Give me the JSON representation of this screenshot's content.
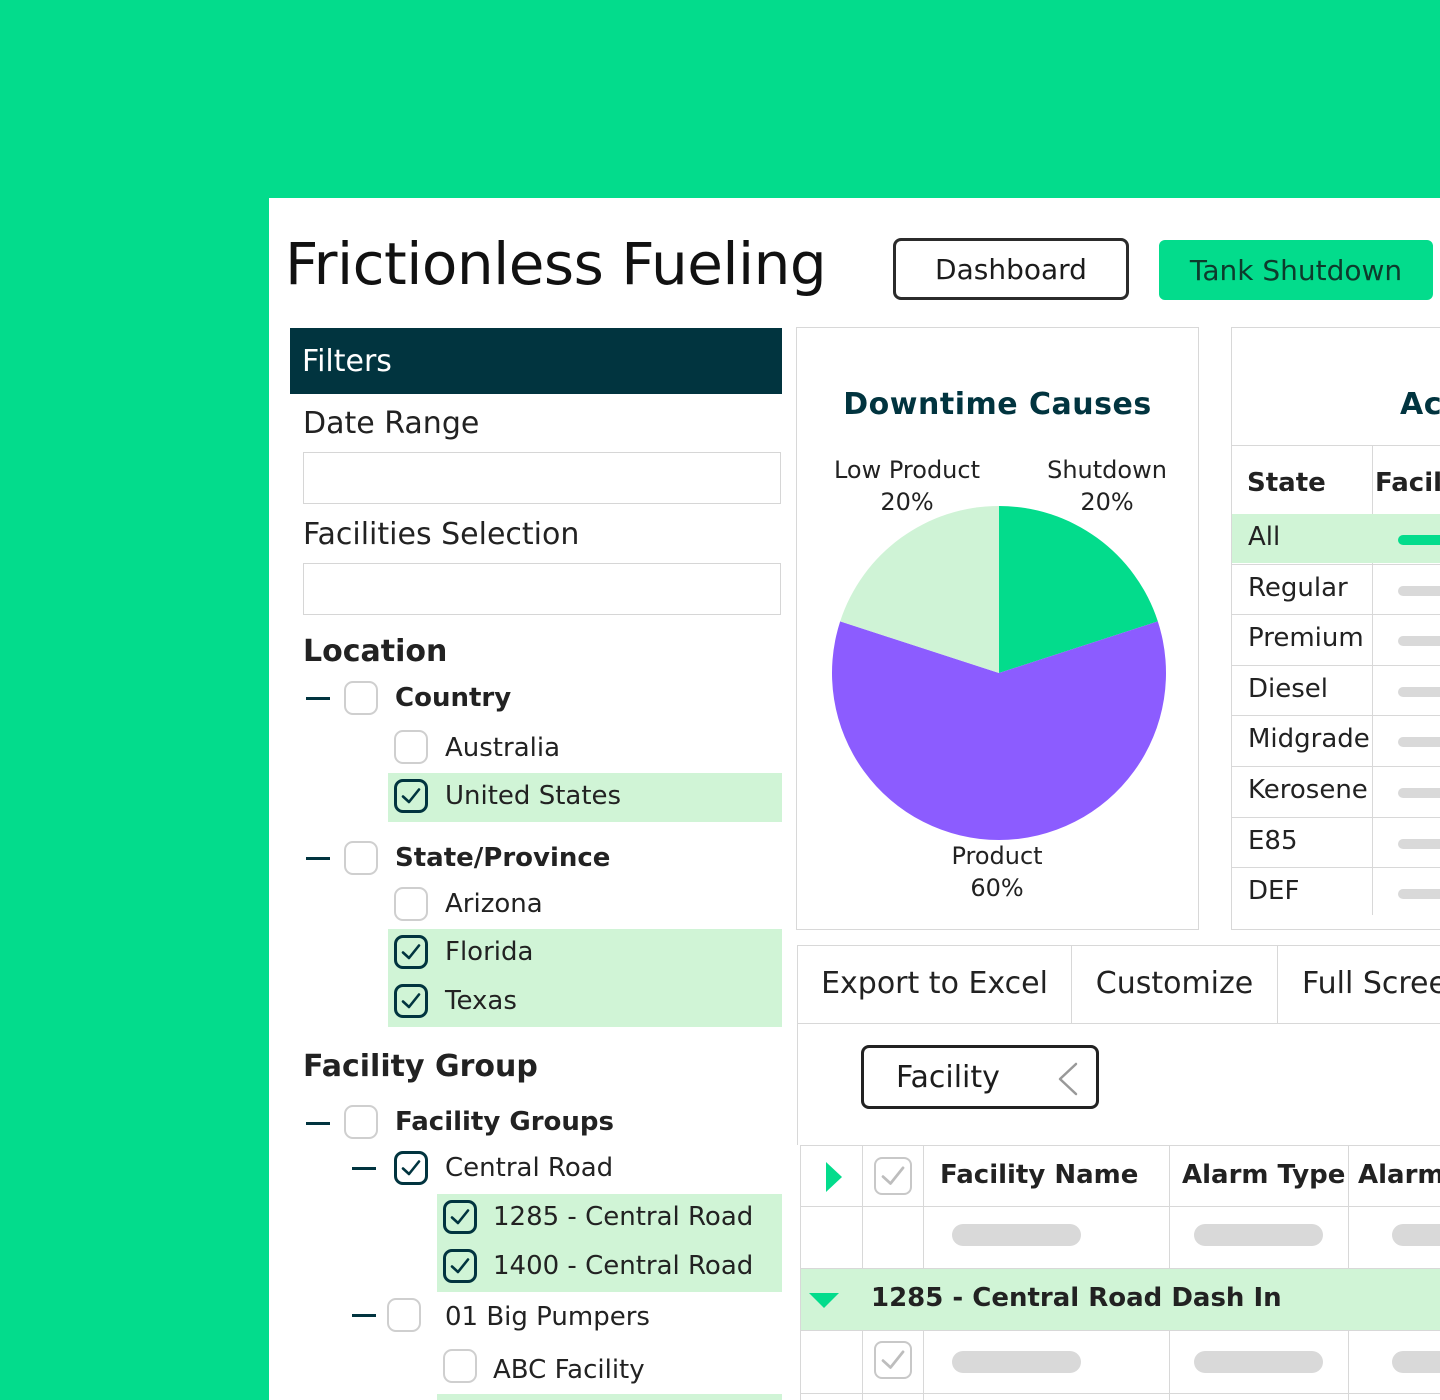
{
  "app": {
    "title": "Frictionless Fueling",
    "nav": {
      "dashboard": "Dashboard",
      "tank_shutdown": "Tank Shutdown"
    }
  },
  "colors": {
    "accent": "#03DC8C",
    "dark": "#01343F",
    "highlight": "#D0F4D6",
    "purple": "#8C5CFF",
    "light_green": "#CFF3D6"
  },
  "filters": {
    "header": "Filters",
    "date_range_label": "Date Range",
    "facilities_selection_label": "Facilities Selection",
    "location": {
      "heading": "Location",
      "country": {
        "label": "Country",
        "options": [
          "Australia",
          "United States"
        ]
      },
      "state": {
        "label": "State/Province",
        "options": [
          "Arizona",
          "Florida",
          "Texas"
        ]
      }
    },
    "facility_group": {
      "heading": "Facility Group",
      "groups_label": "Facility Groups",
      "central_road": "Central Road",
      "central_road_items": [
        "1285 - Central Road",
        "1400 - Central Road"
      ],
      "big_pumpers": "01 Big Pumpers",
      "abc_facility": "ABC Facility"
    }
  },
  "downtime": {
    "title": "Downtime Causes",
    "labels": [
      {
        "name": "Low Product",
        "pct": "20%"
      },
      {
        "name": "Shutdown",
        "pct": "20%"
      },
      {
        "name": "Product",
        "pct": "60%"
      }
    ]
  },
  "chart_data": {
    "type": "pie",
    "title": "Downtime Causes",
    "categories": [
      "Shutdown",
      "Product",
      "Low Product"
    ],
    "values": [
      20,
      60,
      20
    ],
    "colors": [
      "#03DC8C",
      "#8C5CFF",
      "#CFF3D6"
    ]
  },
  "state_table": {
    "title_partial": "Ac",
    "headers": {
      "state": "State",
      "facility_partial": "Facili"
    },
    "rows": [
      "All",
      "Regular",
      "Premium",
      "Diesel",
      "Midgrade",
      "Kerosene",
      "E85",
      "DEF"
    ]
  },
  "toolbar": {
    "export": "Export to Excel",
    "customize": "Customize",
    "fullscreen_partial": "Full Scree"
  },
  "grid": {
    "group_by": "Facility",
    "headers": {
      "facility_name": "Facility Name",
      "alarm_type": "Alarm Type",
      "alarm_partial": "Alarm"
    },
    "group_row": "1285 - Central Road Dash In"
  }
}
